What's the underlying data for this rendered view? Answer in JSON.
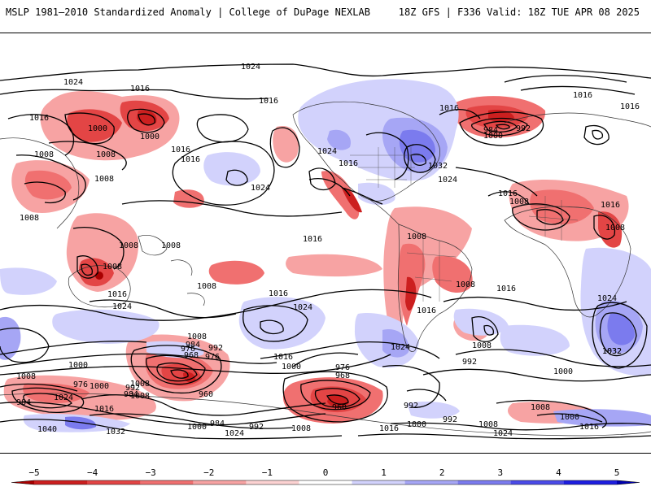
{
  "header": {
    "title": "MSLP 1981–2010 Standardized Anomaly | College of DuPage NEXLAB",
    "model_info": "18Z GFS | F336 Valid: 18Z TUE APR 08 2025"
  },
  "map": {
    "isobar_labels": [
      "1024",
      "1024",
      "1016",
      "1016",
      "1016",
      "1000",
      "1000",
      "1008",
      "1008",
      "1008",
      "1016",
      "1016",
      "1016",
      "1024",
      "1024",
      "1016",
      "1032",
      "1024",
      "1016",
      "984",
      "992",
      "1000",
      "1016",
      "1016",
      "1016",
      "1016",
      "1008",
      "1008",
      "1008",
      "1008",
      "1008",
      "1008",
      "1008",
      "1008",
      "1016",
      "1024",
      "1008",
      "1016",
      "1016",
      "1024",
      "1016",
      "1008",
      "1024",
      "1032",
      "1008",
      "992",
      "976",
      "984",
      "968",
      "976",
      "1016",
      "1000",
      "1000",
      "976",
      "968",
      "960",
      "992",
      "984",
      "1008",
      "1000",
      "976",
      "984",
      "1024",
      "1008",
      "1016",
      "960",
      "1032",
      "1040",
      "1000",
      "984",
      "992",
      "1008",
      "1024",
      "1008",
      "1016",
      "1024",
      "1008",
      "992",
      "1000",
      "992",
      "1008",
      "1000",
      "1016",
      "1024",
      "1032",
      "992",
      "1000"
    ]
  },
  "colorbar": {
    "ticks": [
      "−5",
      "−4",
      "−3",
      "−2",
      "−1",
      "0",
      "1",
      "2",
      "3",
      "4",
      "5"
    ],
    "colors": [
      "#a80000",
      "#cc1f1f",
      "#e34545",
      "#f07070",
      "#f7a3a3",
      "#fcd2d2",
      "#ffffff",
      "#d2d2fc",
      "#a6a6f5",
      "#7b7bee",
      "#4b4be8",
      "#1e1ee0",
      "#0000b0"
    ]
  }
}
